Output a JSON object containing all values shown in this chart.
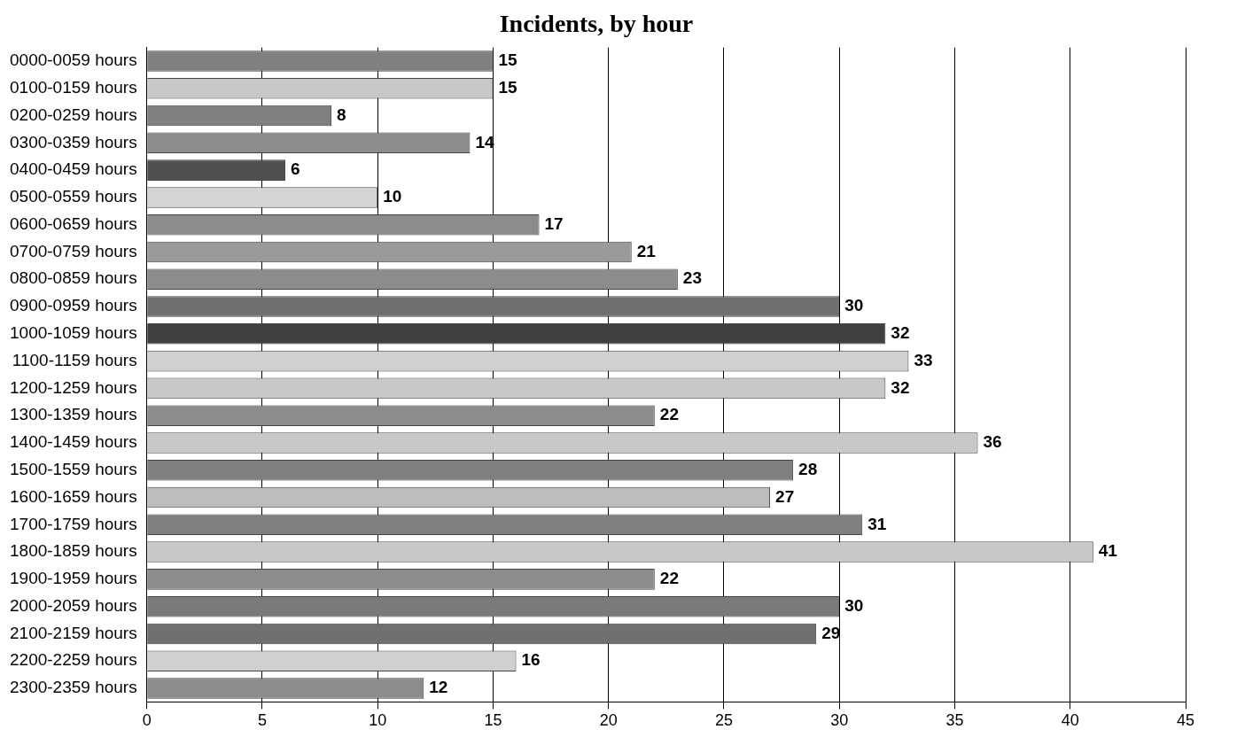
{
  "chart_data": {
    "type": "bar",
    "orientation": "horizontal",
    "title": "Incidents, by hour",
    "categories": [
      "0000-0059 hours",
      "0100-0159 hours",
      "0200-0259 hours",
      "0300-0359 hours",
      "0400-0459 hours",
      "0500-0559 hours",
      "0600-0659 hours",
      "0700-0759 hours",
      "0800-0859 hours",
      "0900-0959 hours",
      "1000-1059 hours",
      "1100-1159 hours",
      "1200-1259 hours",
      "1300-1359 hours",
      "1400-1459 hours",
      "1500-1559 hours",
      "1600-1659 hours",
      "1700-1759 hours",
      "1800-1859 hours",
      "1900-1959 hours",
      "2000-2059 hours",
      "2100-2159 hours",
      "2200-2259 hours",
      "2300-2359 hours"
    ],
    "values": [
      15,
      15,
      8,
      14,
      6,
      10,
      17,
      21,
      23,
      30,
      32,
      33,
      32,
      22,
      36,
      28,
      27,
      31,
      41,
      22,
      30,
      29,
      16,
      12
    ],
    "colors": [
      "#808080",
      "#c8c8c8",
      "#808080",
      "#8c8c8c",
      "#505050",
      "#d4d4d4",
      "#8c8c8c",
      "#9a9a9a",
      "#8c8c8c",
      "#707070",
      "#404040",
      "#d0d0d0",
      "#c8c8c8",
      "#8c8c8c",
      "#c8c8c8",
      "#808080",
      "#bdbdbd",
      "#808080",
      "#c8c8c8",
      "#8c8c8c",
      "#7a7a7a",
      "#707070",
      "#d0d0d0",
      "#8c8c8c"
    ],
    "xlim": [
      0,
      45
    ],
    "xticks": [
      0,
      5,
      10,
      15,
      20,
      25,
      30,
      35,
      40,
      45
    ],
    "grid": "x",
    "data_labels": true,
    "legend": false
  }
}
